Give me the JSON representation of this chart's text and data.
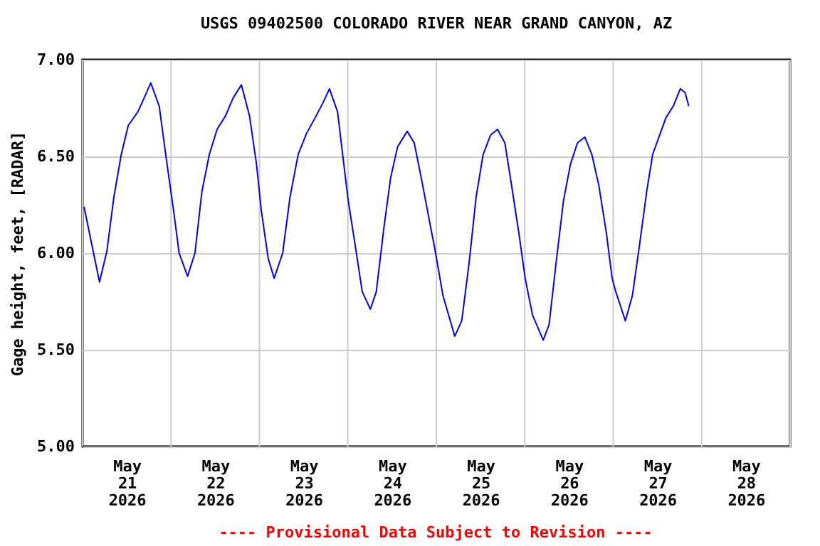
{
  "chart_data": {
    "type": "line",
    "title": "USGS 09402500 COLORADO RIVER NEAR GRAND CANYON, AZ",
    "ylabel": "Gage height, feet, [RADAR]",
    "annotations": [
      "---- Provisional Data Subject to Revision ----"
    ],
    "x": [
      "2026-05-21T00:24",
      "2026-05-21T04:36",
      "2026-05-21T06:36",
      "2026-05-21T08:30",
      "2026-05-21T10:30",
      "2026-05-21T12:24",
      "2026-05-21T15:00",
      "2026-05-21T16:54",
      "2026-05-21T18:30",
      "2026-05-21T20:48",
      "2026-05-21T22:42",
      "2026-05-22T00:42",
      "2026-05-22T02:12",
      "2026-05-22T04:30",
      "2026-05-22T06:30",
      "2026-05-22T08:24",
      "2026-05-22T10:24",
      "2026-05-22T12:30",
      "2026-05-22T14:48",
      "2026-05-22T16:48",
      "2026-05-22T19:06",
      "2026-05-22T21:18",
      "2026-05-22T23:12",
      "2026-05-23T00:30",
      "2026-05-23T02:24",
      "2026-05-23T04:00",
      "2026-05-23T06:18",
      "2026-05-23T08:18",
      "2026-05-23T10:30",
      "2026-05-23T12:48",
      "2026-05-23T15:24",
      "2026-05-23T17:18",
      "2026-05-23T19:00",
      "2026-05-23T21:12",
      "2026-05-23T22:42",
      "2026-05-24T00:06",
      "2026-05-24T01:54",
      "2026-05-24T03:54",
      "2026-05-24T06:06",
      "2026-05-24T07:42",
      "2026-05-24T09:42",
      "2026-05-24T11:36",
      "2026-05-24T13:30",
      "2026-05-24T16:06",
      "2026-05-24T18:00",
      "2026-05-24T19:54",
      "2026-05-24T21:54",
      "2026-05-24T23:48",
      "2026-05-25T01:48",
      "2026-05-25T05:00",
      "2026-05-25T06:54",
      "2026-05-25T08:54",
      "2026-05-25T10:48",
      "2026-05-25T12:42",
      "2026-05-25T14:42",
      "2026-05-25T16:36",
      "2026-05-25T18:36",
      "2026-05-25T20:30",
      "2026-05-25T22:30",
      "2026-05-26T00:06",
      "2026-05-26T02:06",
      "2026-05-26T05:00",
      "2026-05-26T06:36",
      "2026-05-26T08:30",
      "2026-05-26T10:30",
      "2026-05-26T12:24",
      "2026-05-26T14:18",
      "2026-05-26T16:18",
      "2026-05-26T18:12",
      "2026-05-26T20:06",
      "2026-05-26T22:06",
      "2026-05-26T23:42",
      "2026-05-27T00:42",
      "2026-05-27T03:18",
      "2026-05-27T05:12",
      "2026-05-27T07:12",
      "2026-05-27T09:06",
      "2026-05-27T10:42",
      "2026-05-27T12:24",
      "2026-05-27T14:18",
      "2026-05-27T16:18",
      "2026-05-27T18:12",
      "2026-05-27T19:30",
      "2026-05-27T20:30"
    ],
    "series": [
      {
        "color": "#0000ff",
        "values": [
          6.24,
          5.85,
          6.01,
          6.29,
          6.51,
          6.66,
          6.73,
          6.81,
          6.88,
          6.76,
          6.49,
          6.22,
          6.0,
          5.88,
          6.0,
          6.32,
          6.51,
          6.64,
          6.71,
          6.8,
          6.87,
          6.71,
          6.46,
          6.22,
          5.97,
          5.87,
          6.0,
          6.29,
          6.51,
          6.62,
          6.71,
          6.78,
          6.85,
          6.73,
          6.49,
          6.27,
          6.05,
          5.8,
          5.71,
          5.8,
          6.12,
          6.39,
          6.55,
          6.63,
          6.57,
          6.39,
          6.19,
          6.0,
          5.78,
          5.57,
          5.65,
          5.95,
          6.29,
          6.51,
          6.61,
          6.64,
          6.57,
          6.34,
          6.09,
          5.87,
          5.68,
          5.55,
          5.63,
          5.95,
          6.27,
          6.46,
          6.57,
          6.6,
          6.51,
          6.35,
          6.11,
          5.87,
          5.8,
          5.65,
          5.78,
          6.05,
          6.32,
          6.51,
          6.6,
          6.7,
          6.76,
          6.85,
          6.83,
          6.76
        ]
      }
    ],
    "xlim": [
      "2026-05-21T00:00",
      "2026-05-29T00:00"
    ],
    "xticks": [
      {
        "value": "2026-05-21T00:00",
        "label": null
      },
      {
        "value": "2026-05-21T12:00",
        "label": "May\n21\n2026"
      },
      {
        "value": "2026-05-22T00:00",
        "label": null
      },
      {
        "value": "2026-05-22T12:00",
        "label": "May\n22\n2026"
      },
      {
        "value": "2026-05-23T00:00",
        "label": null
      },
      {
        "value": "2026-05-23T12:00",
        "label": "May\n23\n2026"
      },
      {
        "value": "2026-05-24T00:00",
        "label": null
      },
      {
        "value": "2026-05-24T12:00",
        "label": "May\n24\n2026"
      },
      {
        "value": "2026-05-25T00:00",
        "label": null
      },
      {
        "value": "2026-05-25T12:00",
        "label": "May\n25\n2026"
      },
      {
        "value": "2026-05-26T00:00",
        "label": null
      },
      {
        "value": "2026-05-26T12:00",
        "label": "May\n26\n2026"
      },
      {
        "value": "2026-05-27T00:00",
        "label": null
      },
      {
        "value": "2026-05-27T12:00",
        "label": "May\n27\n2026"
      },
      {
        "value": "2026-05-28T00:00",
        "label": null
      },
      {
        "value": "2026-05-28T12:00",
        "label": "May\n28\n2026"
      },
      {
        "value": "2026-05-29T00:00",
        "label": null
      }
    ],
    "ylim": [
      5,
      7
    ],
    "yticks": [
      {
        "value": 5,
        "label": "5.00"
      },
      {
        "value": 5.5,
        "label": "5.50"
      },
      {
        "value": 6,
        "label": "6.00"
      },
      {
        "value": 6.5,
        "label": "6.50"
      },
      {
        "value": 7,
        "label": "7.00"
      }
    ],
    "grid": true,
    "line_style": "solid",
    "marker": "none"
  }
}
